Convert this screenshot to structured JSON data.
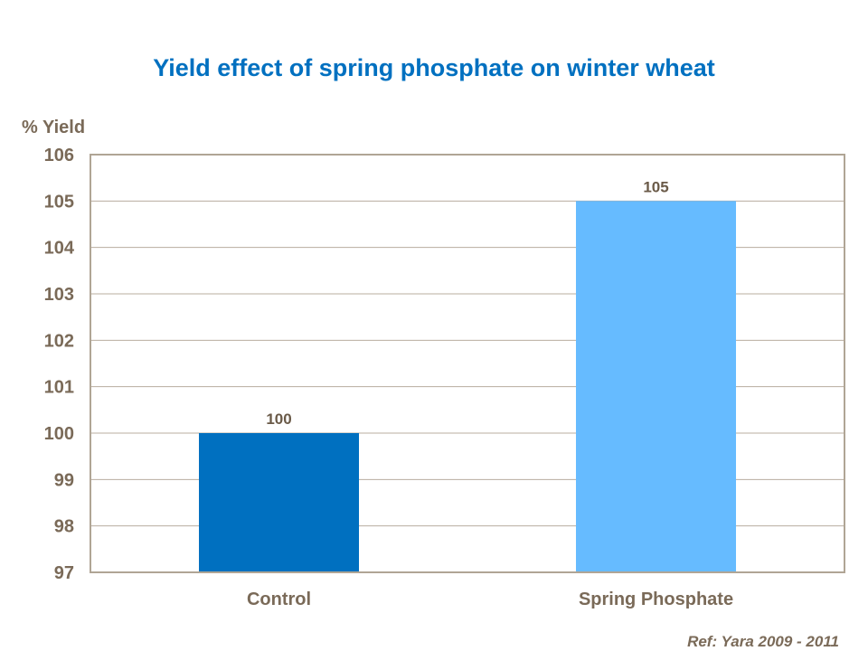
{
  "chart_data": {
    "type": "bar",
    "title": "Yield effect of spring phosphate on winter wheat",
    "ylabel": "% Yield",
    "xlabel": "",
    "categories": [
      "Control",
      "Spring Phosphate"
    ],
    "values": [
      100,
      105
    ],
    "data_labels": [
      "100",
      "105"
    ],
    "colors": [
      "#0070c0",
      "#66bbff"
    ],
    "ylim": [
      97,
      106
    ],
    "yticks": [
      97,
      98,
      99,
      100,
      101,
      102,
      103,
      104,
      105,
      106
    ],
    "grid": true,
    "legend": "none"
  },
  "footnote": "Ref: Yara 2009 - 2011"
}
